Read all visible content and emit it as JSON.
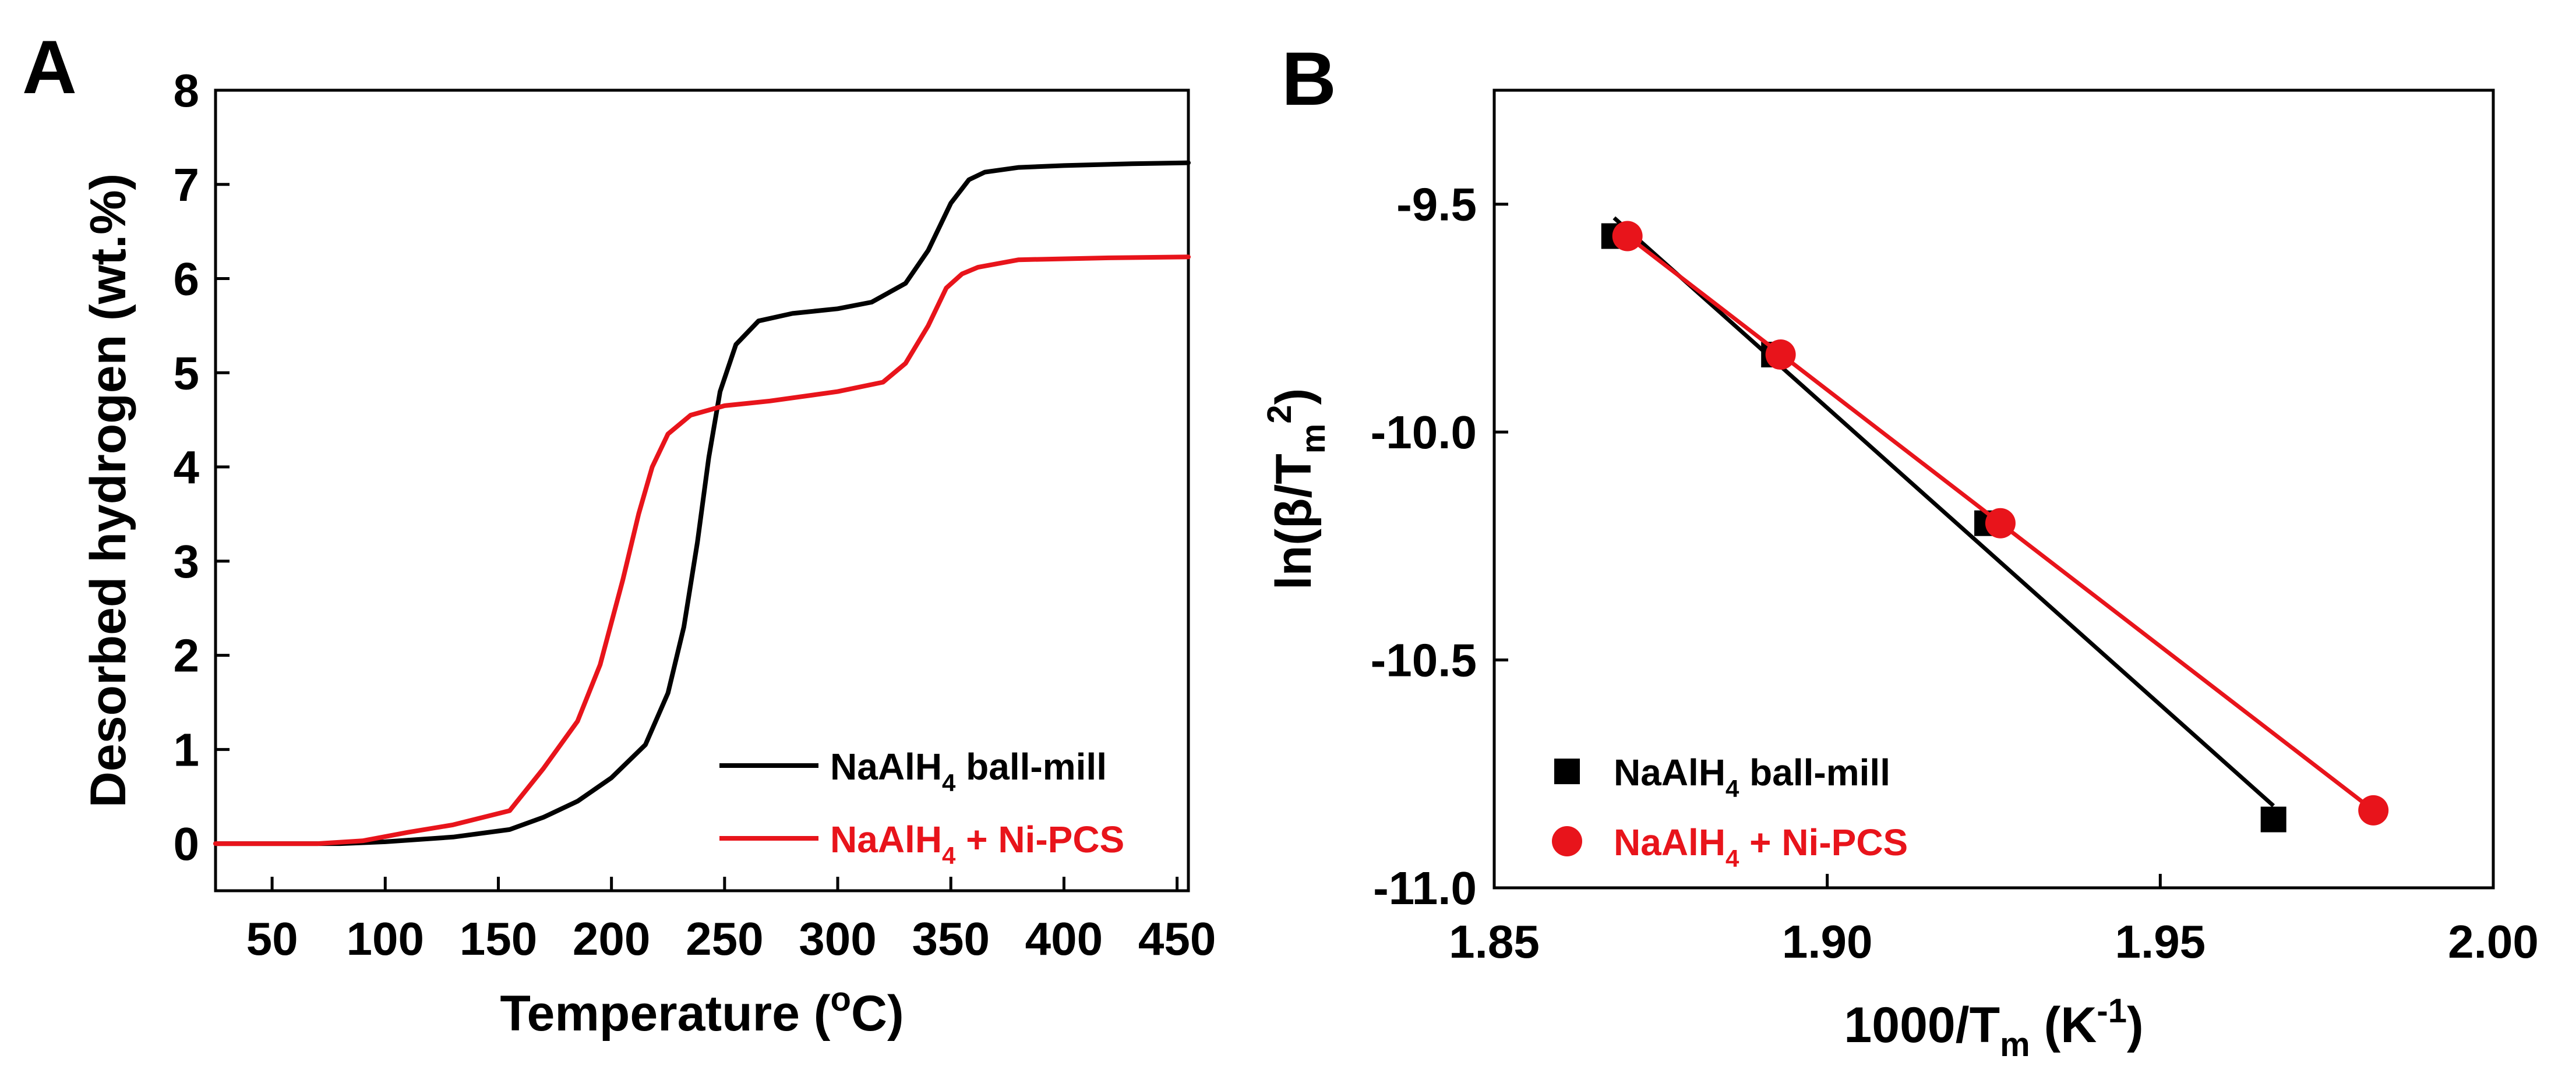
{
  "figure": {
    "panel_a_label": "A",
    "panel_b_label": "B",
    "colors": {
      "black_series": "#000000",
      "red_series": "#e8141b"
    }
  },
  "chart_data": [
    {
      "type": "line",
      "xlabel": "Temperature (°C)",
      "xlabel_parts": [
        "Temperature (",
        "o",
        "C)"
      ],
      "ylabel": "Desorbed hydrogen (wt.%)",
      "xlim": [
        25,
        455
      ],
      "ylim": [
        -0.5,
        8
      ],
      "xticks": [
        50,
        100,
        150,
        200,
        250,
        300,
        350,
        400,
        450
      ],
      "yticks": [
        0,
        1,
        2,
        3,
        4,
        5,
        6,
        7,
        8
      ],
      "legend_position": "bottom-right",
      "series": [
        {
          "name": "NaAlH4 ball-mill",
          "name_parts": [
            "NaAlH",
            "4",
            " ball-mill"
          ],
          "color": "#000000",
          "x": [
            25,
            80,
            100,
            130,
            155,
            170,
            185,
            200,
            215,
            225,
            232,
            238,
            243,
            248,
            255,
            265,
            280,
            300,
            315,
            330,
            340,
            350,
            358,
            365,
            380,
            400,
            430,
            455
          ],
          "y": [
            0,
            0,
            0.02,
            0.07,
            0.15,
            0.28,
            0.45,
            0.7,
            1.05,
            1.6,
            2.3,
            3.2,
            4.1,
            4.8,
            5.3,
            5.55,
            5.63,
            5.68,
            5.75,
            5.95,
            6.3,
            6.8,
            7.05,
            7.13,
            7.18,
            7.2,
            7.22,
            7.23
          ]
        },
        {
          "name": "NaAlH4 + Ni-PCS",
          "name_parts": [
            "NaAlH",
            "4",
            " + Ni-PCS"
          ],
          "color": "#e8141b",
          "x": [
            25,
            70,
            90,
            110,
            130,
            155,
            170,
            185,
            195,
            205,
            212,
            218,
            225,
            235,
            250,
            270,
            300,
            320,
            330,
            340,
            348,
            355,
            362,
            380,
            420,
            455
          ],
          "y": [
            0,
            0,
            0.03,
            0.12,
            0.2,
            0.35,
            0.8,
            1.3,
            1.9,
            2.8,
            3.5,
            4.0,
            4.35,
            4.55,
            4.65,
            4.7,
            4.8,
            4.9,
            5.1,
            5.5,
            5.9,
            6.05,
            6.12,
            6.2,
            6.22,
            6.23
          ]
        }
      ]
    },
    {
      "type": "scatter",
      "xlabel": "1000/Tm (K-1)",
      "xlabel_parts": [
        "1000/T",
        "m",
        " (K",
        "-1",
        ")"
      ],
      "ylabel": "ln(β/Tm2)",
      "ylabel_parts": [
        "ln(β/T",
        "m",
        "2",
        ")"
      ],
      "xlim": [
        1.85,
        2.0
      ],
      "ylim": [
        -11.0,
        -9.25
      ],
      "xticks": [
        1.85,
        1.9,
        1.95,
        2.0
      ],
      "xtick_labels": [
        "1.85",
        "1.90",
        "1.95",
        "2.00"
      ],
      "yticks": [
        -11.0,
        -10.5,
        -10.0,
        -9.5
      ],
      "ytick_labels": [
        "-11.0",
        "-10.5",
        "-10.0",
        "-9.5"
      ],
      "legend_position": "bottom-left",
      "series": [
        {
          "name": "NaAlH4 ball-mill",
          "name_parts": [
            "NaAlH",
            "4",
            " ball-mill"
          ],
          "marker": "square",
          "color": "#000000",
          "x": [
            1.868,
            1.892,
            1.924,
            1.967
          ],
          "y": [
            -9.57,
            -9.83,
            -10.2,
            -10.85
          ],
          "fit_x": [
            1.868,
            1.967
          ],
          "fit_y": [
            -9.53,
            -10.82
          ]
        },
        {
          "name": "NaAlH4 + Ni-PCS",
          "name_parts": [
            "NaAlH",
            "4",
            " + Ni-PCS"
          ],
          "marker": "circle",
          "color": "#e8141b",
          "x": [
            1.87,
            1.893,
            1.926,
            1.982
          ],
          "y": [
            -9.57,
            -9.83,
            -10.2,
            -10.83
          ],
          "fit_x": [
            1.87,
            1.982
          ],
          "fit_y": [
            -9.57,
            -10.83
          ]
        }
      ]
    }
  ]
}
